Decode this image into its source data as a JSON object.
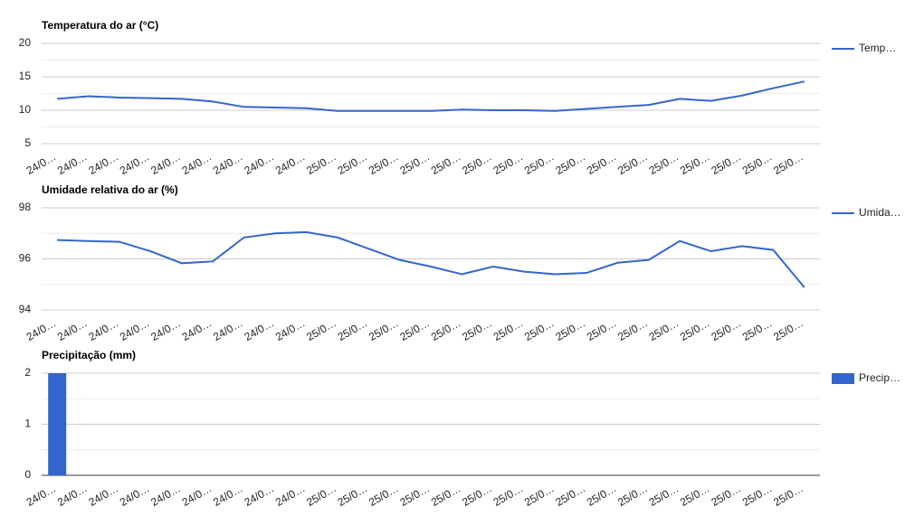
{
  "chart_data": [
    {
      "type": "line",
      "title": "Temperatura do ar (°C)",
      "categories": [
        "24/0…",
        "24/0…",
        "24/0…",
        "24/0…",
        "24/0…",
        "24/0…",
        "24/0…",
        "24/0…",
        "24/0…",
        "25/0…",
        "25/0…",
        "25/0…",
        "25/0…",
        "25/0…",
        "25/0…",
        "25/0…",
        "25/0…",
        "25/0…",
        "25/0…",
        "25/0…",
        "25/0…",
        "25/0…",
        "25/0…",
        "25/0…",
        "25/0…"
      ],
      "series": [
        {
          "name": "Temp…",
          "color": "#3366cc",
          "values": [
            11.7,
            12.1,
            11.9,
            11.8,
            11.7,
            11.3,
            10.5,
            10.4,
            10.3,
            9.9,
            9.9,
            9.9,
            9.9,
            10.1,
            10.0,
            10.0,
            9.9,
            10.2,
            10.5,
            10.8,
            11.7,
            11.4,
            12.2,
            13.3,
            14.3
          ]
        }
      ],
      "ylim": [
        5,
        20
      ],
      "yticks": [
        5,
        10,
        15,
        20
      ],
      "grid": true,
      "legend": "right"
    },
    {
      "type": "line",
      "title": "Umidade relativa do ar (%)",
      "categories": [
        "24/0…",
        "24/0…",
        "24/0…",
        "24/0…",
        "24/0…",
        "24/0…",
        "24/0…",
        "24/0…",
        "24/0…",
        "25/0…",
        "25/0…",
        "25/0…",
        "25/0…",
        "25/0…",
        "25/0…",
        "25/0…",
        "25/0…",
        "25/0…",
        "25/0…",
        "25/0…",
        "25/0…",
        "25/0…",
        "25/0…",
        "25/0…",
        "25/0…"
      ],
      "series": [
        {
          "name": "Umida…",
          "color": "#3366cc",
          "values": [
            96.74,
            96.7,
            96.67,
            96.3,
            95.83,
            95.9,
            96.84,
            97.0,
            97.05,
            96.84,
            96.4,
            95.96,
            95.7,
            95.4,
            95.7,
            95.5,
            95.4,
            95.45,
            95.85,
            95.96,
            96.7,
            96.3,
            96.5,
            96.35,
            94.88
          ]
        }
      ],
      "ylim": [
        94,
        98
      ],
      "yticks": [
        94,
        96,
        98
      ],
      "grid": true,
      "legend": "right"
    },
    {
      "type": "bar",
      "title": "Precipitação (mm)",
      "categories": [
        "24/0…",
        "24/0…",
        "24/0…",
        "24/0…",
        "24/0…",
        "24/0…",
        "24/0…",
        "24/0…",
        "24/0…",
        "25/0…",
        "25/0…",
        "25/0…",
        "25/0…",
        "25/0…",
        "25/0…",
        "25/0…",
        "25/0…",
        "25/0…",
        "25/0…",
        "25/0…",
        "25/0…",
        "25/0…",
        "25/0…",
        "25/0…",
        "25/0…"
      ],
      "series": [
        {
          "name": "Precip…",
          "color": "#3366cc",
          "values": [
            2,
            0,
            0,
            0,
            0,
            0,
            0,
            0,
            0,
            0,
            0,
            0,
            0,
            0,
            0,
            0,
            0,
            0,
            0,
            0,
            0,
            0,
            0,
            0,
            0
          ]
        }
      ],
      "ylim": [
        0,
        2
      ],
      "yticks": [
        0,
        1,
        2
      ],
      "grid": true,
      "legend": "right"
    }
  ]
}
